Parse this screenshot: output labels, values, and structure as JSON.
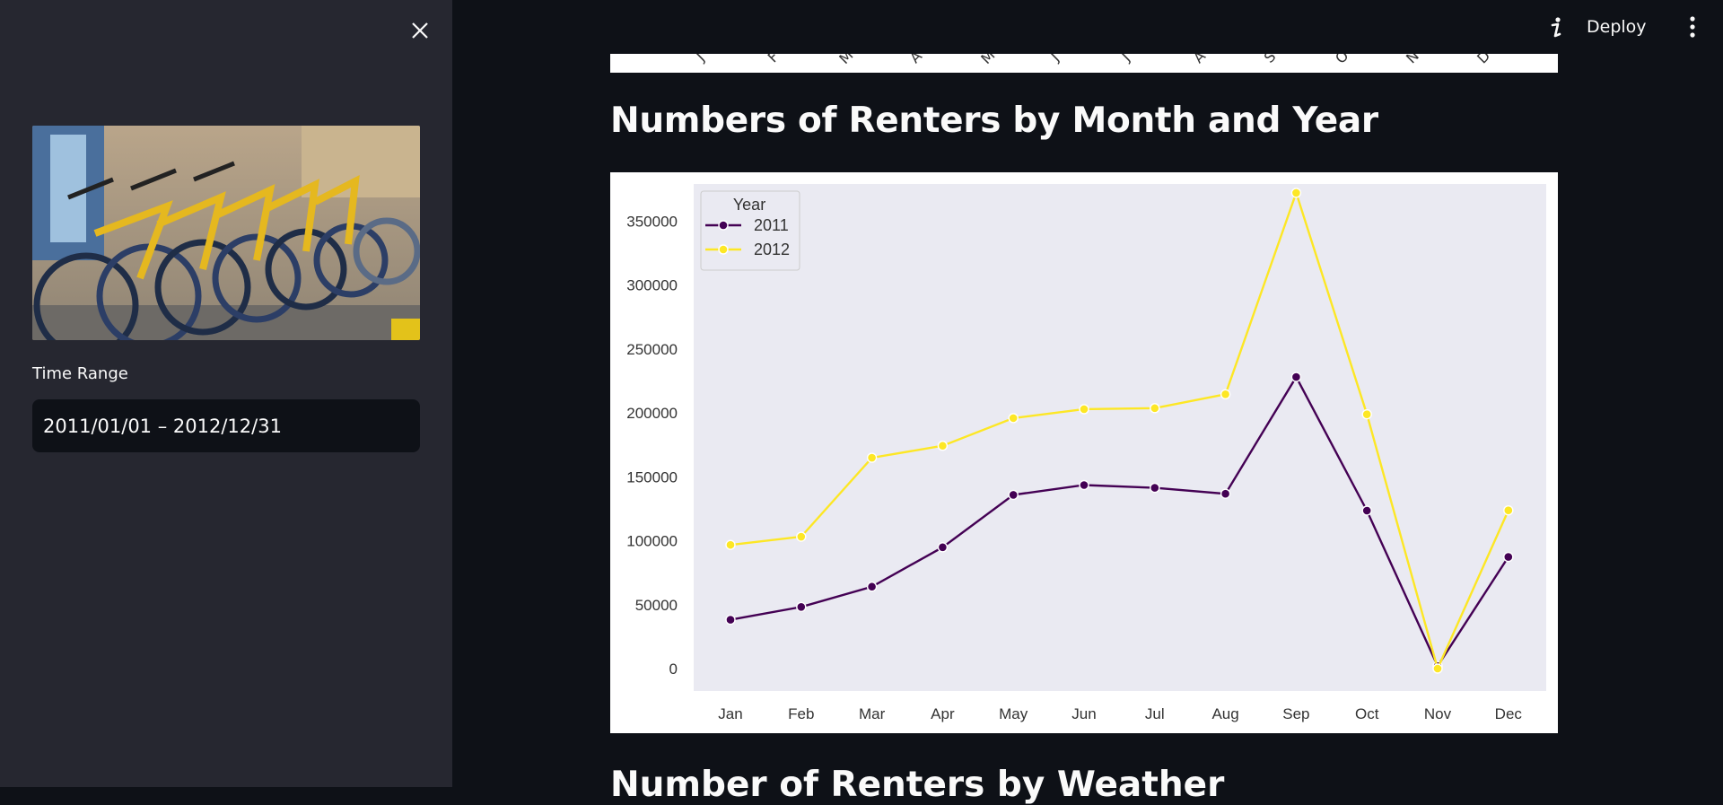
{
  "sidebar": {
    "time_range_label": "Time Range",
    "time_range_value": "2011/01/01 – 2012/12/31"
  },
  "header": {
    "deploy_label": "Deploy"
  },
  "main": {
    "prev_chart_ticks": [
      "J",
      "F",
      "M",
      "A",
      "M",
      "J",
      "J",
      "A",
      "S",
      "O",
      "N",
      "D"
    ],
    "heading": "Numbers of Renters by Month and Year",
    "next_heading": "Number of Renters by Weather"
  },
  "colors": {
    "page_bg": "#0e1117",
    "sidebar_bg": "#262730",
    "plot_bg": "#eaeaf2",
    "series_2011": "#440154",
    "series_2012": "#fde725"
  },
  "chart_data": {
    "type": "line",
    "title": "",
    "xlabel": "",
    "ylabel": "",
    "categories": [
      "Jan",
      "Feb",
      "Mar",
      "Apr",
      "May",
      "Jun",
      "Jul",
      "Aug",
      "Sep",
      "Oct",
      "Nov",
      "Dec"
    ],
    "ylim": [
      0,
      370000
    ],
    "yticks": [
      0,
      50000,
      100000,
      150000,
      200000,
      250000,
      300000,
      350000
    ],
    "grid": false,
    "legend_title": "Year",
    "legend_position": "top-left",
    "series": [
      {
        "name": "2011",
        "color": "#440154",
        "values": [
          38189,
          48215,
          64045,
          94870,
          135821,
          143512,
          141341,
          136691,
          228000,
          123511,
          2000,
          87323
        ]
      },
      {
        "name": "2012",
        "color": "#fde725",
        "values": [
          96744,
          103137,
          164875,
          174224,
          195865,
          202830,
          203607,
          214503,
          372000,
          198841,
          0,
          123713
        ]
      }
    ]
  }
}
